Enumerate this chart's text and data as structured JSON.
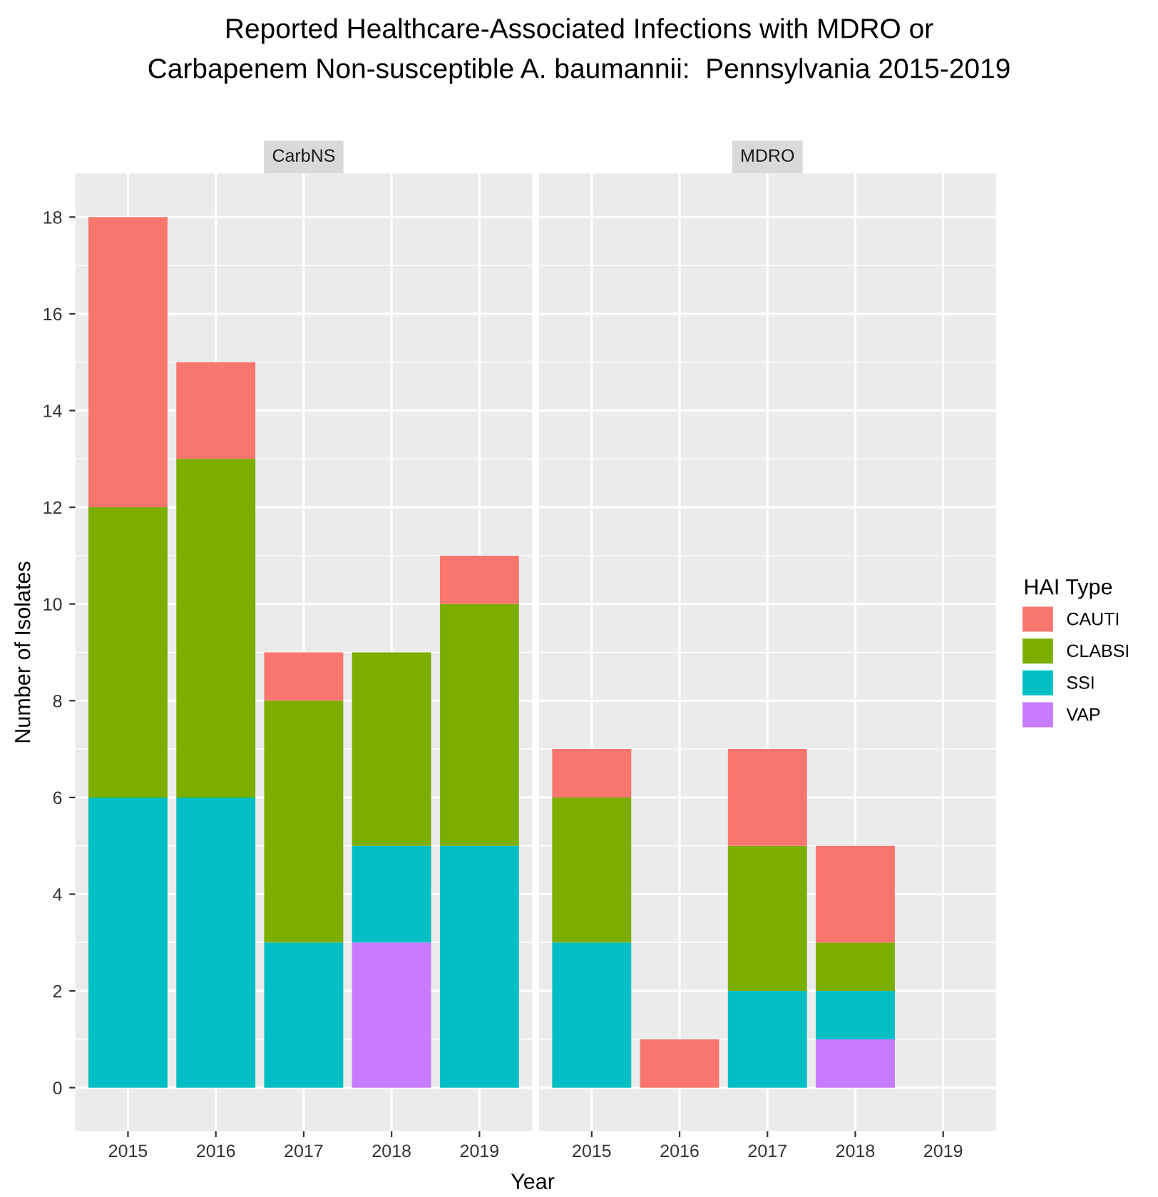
{
  "chart_data": [
    {
      "type": "bar",
      "title": "Reported Healthcare-Associated Infections with MDRO or\nCarbapenem Non-susceptible A. baumannii:  Pennsylvania 2015-2019",
      "subtitle": "CarbNS",
      "xlabel": "Year",
      "ylabel": "Number of Isolates",
      "categories": [
        "2015",
        "2016",
        "2017",
        "2018",
        "2019"
      ],
      "stacked": true,
      "ylim": [
        -0.9,
        18.9
      ],
      "yticks": [
        0,
        2,
        4,
        6,
        8,
        10,
        12,
        14,
        16,
        18
      ],
      "grid": true,
      "legend": "right",
      "legend_title": "HAI Type",
      "series": [
        {
          "name": "VAP",
          "color": "#c77cff",
          "values": [
            null,
            null,
            null,
            3,
            null
          ]
        },
        {
          "name": "SSI",
          "color": "#00bfc4",
          "values": [
            6,
            6,
            3,
            2,
            5
          ]
        },
        {
          "name": "CLABSI",
          "color": "#7cae00",
          "values": [
            6,
            7,
            5,
            4,
            5
          ]
        },
        {
          "name": "CAUTI",
          "color": "#f8766d",
          "values": [
            6,
            2,
            1,
            null,
            1
          ]
        }
      ]
    },
    {
      "type": "bar",
      "subtitle": "MDRO",
      "categories": [
        "2015",
        "2016",
        "2017",
        "2018",
        "2019"
      ],
      "stacked": true,
      "ylim": [
        -0.9,
        18.9
      ],
      "yticks": [
        0,
        2,
        4,
        6,
        8,
        10,
        12,
        14,
        16,
        18
      ],
      "grid": true,
      "tick_labels": "x",
      "series": [
        {
          "color": "#c77cff",
          "values": [
            null,
            null,
            null,
            1,
            null
          ]
        },
        {
          "color": "#00bfc4",
          "values": [
            3,
            null,
            2,
            1,
            null
          ]
        },
        {
          "color": "#7cae00",
          "values": [
            3,
            null,
            3,
            1,
            null
          ]
        },
        {
          "color": "#f8766d",
          "values": [
            1,
            1,
            2,
            2,
            null
          ]
        }
      ]
    }
  ]
}
